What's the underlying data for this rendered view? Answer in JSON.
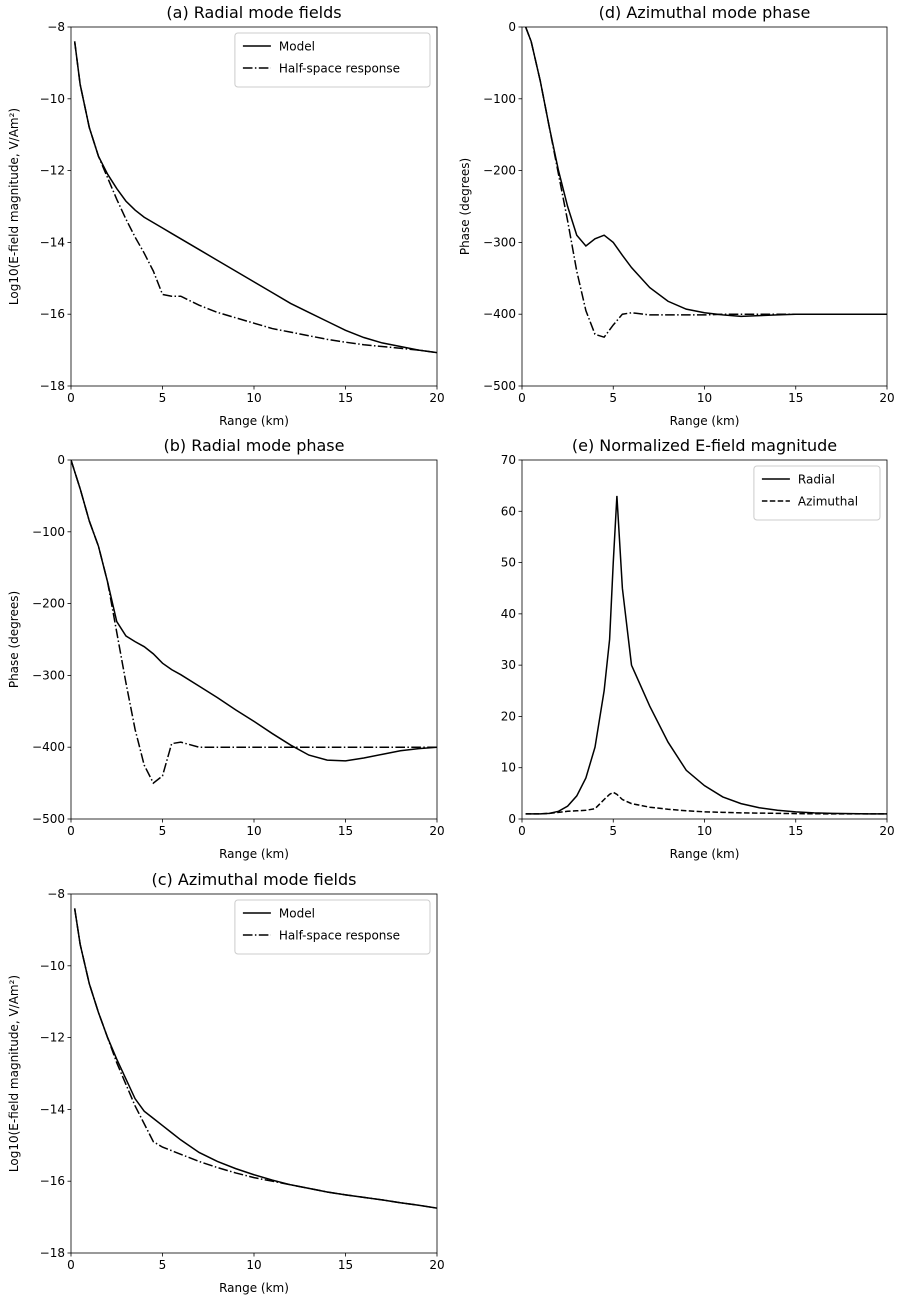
{
  "chart_data": [
    {
      "type": "line",
      "title": "(a) Radial mode fields",
      "xlabel": "Range (km)",
      "ylabel": "Log10(E-field magnitude, V/Am²)",
      "x": [
        0.2,
        0.5,
        1,
        1.5,
        2,
        2.5,
        3,
        3.5,
        4,
        4.5,
        5,
        5.5,
        6,
        7,
        8,
        9,
        10,
        11,
        12,
        13,
        14,
        15,
        16,
        17,
        18,
        19,
        20
      ],
      "series": [
        {
          "name": "Model",
          "color": "#000000",
          "linestyle": "solid",
          "values": [
            -8.4,
            -9.6,
            -10.8,
            -11.6,
            -12.1,
            -12.5,
            -12.85,
            -13.1,
            -13.3,
            -13.45,
            -13.6,
            -13.75,
            -13.9,
            -14.2,
            -14.5,
            -14.8,
            -15.1,
            -15.4,
            -15.7,
            -15.95,
            -16.2,
            -16.45,
            -16.65,
            -16.8,
            -16.9,
            -17.0,
            -17.07
          ]
        },
        {
          "name": "Half-space response",
          "color": "#000000",
          "linestyle": "dashdot",
          "values": [
            -8.4,
            -9.6,
            -10.8,
            -11.6,
            -12.2,
            -12.8,
            -13.35,
            -13.85,
            -14.3,
            -14.8,
            -15.45,
            -15.5,
            -15.5,
            -15.75,
            -15.95,
            -16.1,
            -16.25,
            -16.4,
            -16.5,
            -16.6,
            -16.7,
            -16.78,
            -16.85,
            -16.9,
            -16.95,
            -17.0,
            -17.07
          ]
        }
      ],
      "xlim": [
        0,
        20
      ],
      "xticks": [
        0,
        5,
        10,
        15,
        20
      ],
      "ylim": [
        -18,
        -8
      ],
      "yticks": [
        {
          "value": -18,
          "label": "−18"
        },
        {
          "value": -16,
          "label": "−16"
        },
        {
          "value": -14,
          "label": "−14"
        },
        {
          "value": -12,
          "label": "−12"
        },
        {
          "value": -10,
          "label": "−10"
        },
        {
          "value": -8,
          "label": "−8"
        }
      ],
      "legend": "upper right"
    },
    {
      "type": "line",
      "title": "(b) Radial mode phase",
      "xlabel": "Range (km)",
      "ylabel": "Phase (degrees)",
      "x": [
        0,
        0.5,
        1,
        1.5,
        2,
        2.5,
        3,
        3.5,
        4,
        4.5,
        5,
        5.5,
        6,
        7,
        8,
        9,
        10,
        11,
        12,
        13,
        14,
        15,
        16,
        17,
        18,
        19,
        20
      ],
      "series": [
        {
          "name": "Model",
          "color": "#000000",
          "linestyle": "solid",
          "values": [
            0,
            -40,
            -85,
            -120,
            -170,
            -225,
            -245,
            -253,
            -260,
            -270,
            -283,
            -292,
            -299,
            -315,
            -331,
            -348,
            -364,
            -381,
            -397,
            -411,
            -418,
            -419,
            -415,
            -410,
            -405,
            -402,
            -400
          ]
        },
        {
          "name": "Half-space response",
          "color": "#000000",
          "linestyle": "dashdot",
          "values": [
            0,
            -40,
            -85,
            -120,
            -170,
            -240,
            -310,
            -375,
            -425,
            -450,
            -440,
            -395,
            -393,
            -400,
            -400,
            -400,
            -400,
            -400,
            -400,
            -400,
            -400,
            -400,
            -400,
            -400,
            -400,
            -400,
            -400
          ]
        }
      ],
      "xlim": [
        0,
        20
      ],
      "xticks": [
        0,
        5,
        10,
        15,
        20
      ],
      "ylim": [
        -500,
        0
      ],
      "yticks": [
        {
          "value": -500,
          "label": "−500"
        },
        {
          "value": -400,
          "label": "−400"
        },
        {
          "value": -300,
          "label": "−300"
        },
        {
          "value": -200,
          "label": "−200"
        },
        {
          "value": -100,
          "label": "−100"
        },
        0
      ]
    },
    {
      "type": "line",
      "title": "(c) Azimuthal mode fields",
      "xlabel": "Range (km)",
      "ylabel": "Log10(E-field magnitude, V/Am²)",
      "x": [
        0.2,
        0.5,
        1,
        1.5,
        2,
        2.5,
        3,
        3.5,
        4,
        4.5,
        5,
        5.5,
        6,
        7,
        8,
        9,
        10,
        11,
        12,
        13,
        14,
        15,
        16,
        17,
        18,
        19,
        20
      ],
      "series": [
        {
          "name": "Model",
          "color": "#000000",
          "linestyle": "solid",
          "values": [
            -8.4,
            -9.4,
            -10.5,
            -11.3,
            -12.0,
            -12.6,
            -13.15,
            -13.7,
            -14.05,
            -14.25,
            -14.45,
            -14.65,
            -14.85,
            -15.2,
            -15.45,
            -15.65,
            -15.82,
            -15.97,
            -16.1,
            -16.2,
            -16.3,
            -16.38,
            -16.45,
            -16.52,
            -16.6,
            -16.67,
            -16.75
          ]
        },
        {
          "name": "Half-space response",
          "color": "#000000",
          "linestyle": "dashdot",
          "values": [
            -8.4,
            -9.4,
            -10.5,
            -11.3,
            -12.0,
            -12.7,
            -13.3,
            -13.9,
            -14.4,
            -14.9,
            -15.05,
            -15.15,
            -15.25,
            -15.45,
            -15.62,
            -15.77,
            -15.9,
            -16.0,
            -16.1,
            -16.2,
            -16.3,
            -16.38,
            -16.45,
            -16.52,
            -16.6,
            -16.67,
            -16.75
          ]
        }
      ],
      "xlim": [
        0,
        20
      ],
      "xticks": [
        0,
        5,
        10,
        15,
        20
      ],
      "ylim": [
        -18,
        -8
      ],
      "yticks": [
        {
          "value": -18,
          "label": "−18"
        },
        {
          "value": -16,
          "label": "−16"
        },
        {
          "value": -14,
          "label": "−14"
        },
        {
          "value": -12,
          "label": "−12"
        },
        {
          "value": -10,
          "label": "−10"
        },
        {
          "value": -8,
          "label": "−8"
        }
      ],
      "legend": "upper right"
    },
    {
      "type": "line",
      "title": "(d) Azimuthal mode phase",
      "xlabel": "Range (km)",
      "ylabel": "Phase (degrees)",
      "x": [
        0.2,
        0.5,
        1,
        1.5,
        2,
        2.5,
        3,
        3.5,
        4,
        4.5,
        5,
        5.5,
        6,
        7,
        8,
        9,
        10,
        11,
        12,
        13,
        14,
        15,
        16,
        17,
        18,
        19,
        20
      ],
      "series": [
        {
          "name": "Model",
          "color": "#000000",
          "linestyle": "solid",
          "values": [
            0,
            -20,
            -75,
            -140,
            -200,
            -250,
            -290,
            -305,
            -295,
            -290,
            -300,
            -318,
            -335,
            -363,
            -382,
            -393,
            -398,
            -401,
            -403,
            -402,
            -401,
            -400,
            -400,
            -400,
            -400,
            -400,
            -400
          ]
        },
        {
          "name": "Half-space response",
          "color": "#000000",
          "linestyle": "dashdot",
          "values": [
            0,
            -20,
            -75,
            -140,
            -205,
            -270,
            -340,
            -395,
            -428,
            -432,
            -415,
            -400,
            -398,
            -401,
            -401,
            -401,
            -401,
            -400,
            -400,
            -400,
            -400,
            -400,
            -400,
            -400,
            -400,
            -400,
            -400
          ]
        }
      ],
      "xlim": [
        0,
        20
      ],
      "xticks": [
        0,
        5,
        10,
        15,
        20
      ],
      "ylim": [
        -500,
        0
      ],
      "yticks": [
        {
          "value": -500,
          "label": "−500"
        },
        {
          "value": -400,
          "label": "−400"
        },
        {
          "value": -300,
          "label": "−300"
        },
        {
          "value": -200,
          "label": "−200"
        },
        {
          "value": -100,
          "label": "−100"
        },
        0
      ]
    },
    {
      "type": "line",
      "title": "(e) Normalized E-field magnitude",
      "xlabel": "Range (km)",
      "x": [
        0.2,
        1,
        1.5,
        2,
        2.5,
        3,
        3.5,
        4,
        4.5,
        4.8,
        5,
        5.2,
        5.5,
        6,
        7,
        8,
        9,
        10,
        11,
        12,
        13,
        14,
        15,
        16,
        17,
        18,
        19,
        20
      ],
      "series": [
        {
          "name": "Radial",
          "color": "#000000",
          "linestyle": "solid",
          "values": [
            1,
            1,
            1.1,
            1.5,
            2.5,
            4.5,
            8,
            14,
            25,
            35,
            50,
            63,
            45,
            30,
            22,
            15,
            9.5,
            6.5,
            4.3,
            3,
            2.2,
            1.7,
            1.4,
            1.2,
            1.1,
            1.05,
            1,
            1
          ]
        },
        {
          "name": "Azimuthal",
          "color": "#000000",
          "linestyle": "dashed",
          "values": [
            1,
            1,
            1.1,
            1.3,
            1.5,
            1.6,
            1.7,
            2,
            3.8,
            4.8,
            5.2,
            4.8,
            3.8,
            3,
            2.3,
            1.9,
            1.6,
            1.4,
            1.3,
            1.2,
            1.15,
            1.1,
            1.05,
            1.02,
            1,
            1,
            1,
            1
          ]
        }
      ],
      "xlim": [
        0,
        20
      ],
      "xticks": [
        0,
        5,
        10,
        15,
        20
      ],
      "ylim": [
        0,
        70
      ],
      "yticks": [
        0,
        10,
        20,
        30,
        40,
        50,
        60,
        70
      ],
      "legend": "upper right"
    }
  ]
}
